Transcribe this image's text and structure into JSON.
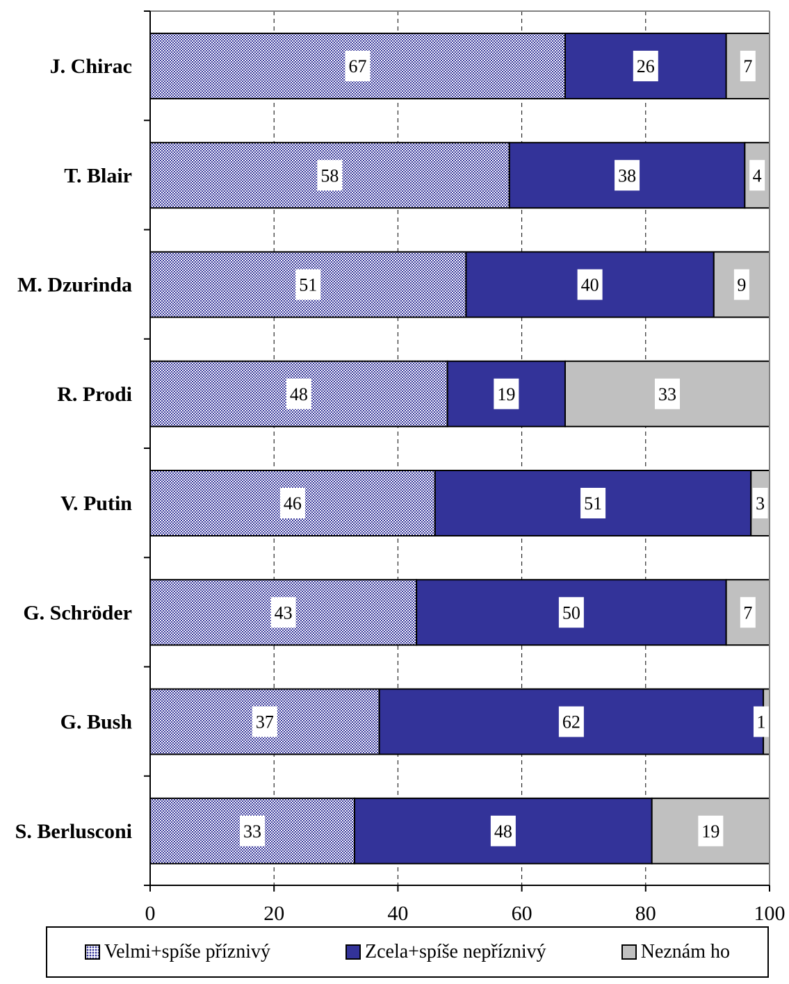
{
  "chart_data": {
    "type": "bar",
    "orientation": "horizontal",
    "stacked": true,
    "categories": [
      "J. Chirac",
      "T. Blair",
      "M. Dzurinda",
      "R. Prodi",
      "V. Putin",
      "G. Schröder",
      "G. Bush",
      "S. Berlusconi"
    ],
    "series": [
      {
        "name": "Velmi+spíše příznivý",
        "values": [
          67,
          58,
          51,
          48,
          46,
          43,
          37,
          33
        ],
        "color": "#333399",
        "pattern": "dotted"
      },
      {
        "name": "Zcela+spíše nepříznivý",
        "values": [
          26,
          38,
          40,
          19,
          51,
          50,
          62,
          48
        ],
        "color": "#333399"
      },
      {
        "name": "Neznám ho",
        "values": [
          7,
          4,
          9,
          33,
          3,
          7,
          1,
          19
        ],
        "color": "#c0c0c0"
      }
    ],
    "xlim": [
      0,
      100
    ],
    "xticks": [
      "0",
      "20",
      "40",
      "60",
      "80",
      "100"
    ],
    "grid": "vertical dashed",
    "legend_position": "bottom"
  }
}
